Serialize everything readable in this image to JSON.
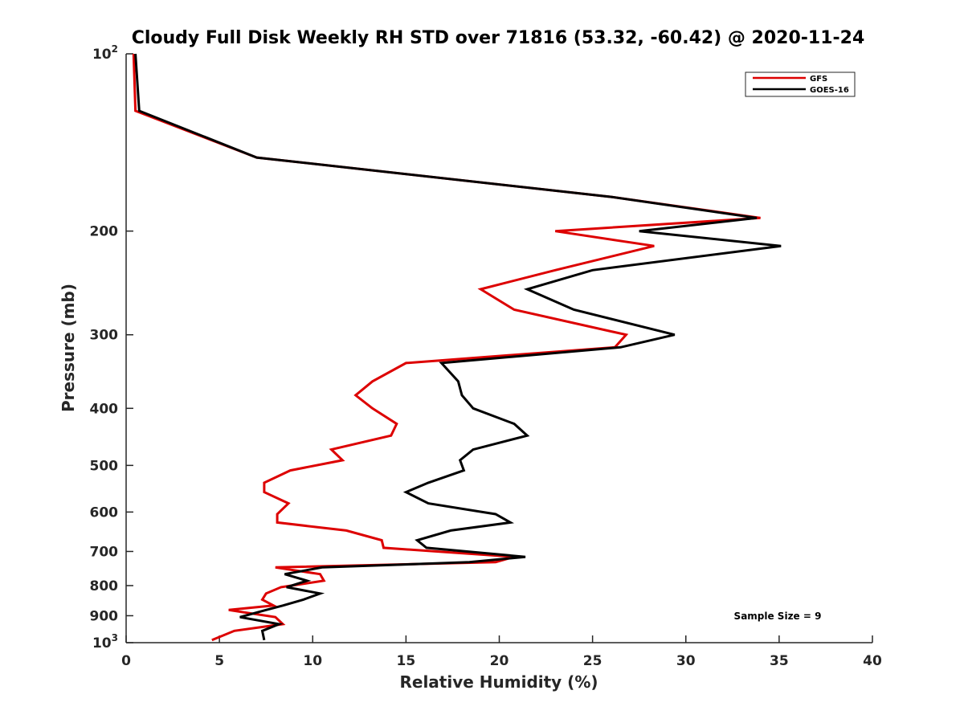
{
  "chart_data": {
    "type": "line",
    "title": "Cloudy Full Disk Weekly RH STD over 71816 (53.32, -60.42) @ 2020-11-24",
    "xlabel": "Relative Humidity (%)",
    "ylabel": "Pressure (mb)",
    "xlim": [
      0,
      40
    ],
    "ylim": [
      100,
      1000
    ],
    "y_scale": "log",
    "y_reversed": true,
    "x_ticks": [
      "0",
      "5",
      "10",
      "15",
      "20",
      "25",
      "30",
      "35",
      "40"
    ],
    "y_ticks": [
      {
        "value": 100,
        "base": "10",
        "exp": "2"
      },
      {
        "value": 200,
        "label": "200"
      },
      {
        "value": 300,
        "label": "300"
      },
      {
        "value": 400,
        "label": "400"
      },
      {
        "value": 500,
        "label": "500"
      },
      {
        "value": 600,
        "label": "600"
      },
      {
        "value": 700,
        "label": "700"
      },
      {
        "value": 800,
        "label": "800"
      },
      {
        "value": 900,
        "label": "900"
      },
      {
        "value": 1000,
        "base": "10",
        "exp": "3"
      }
    ],
    "legend_position": "top-right",
    "annotation": "Sample Size = 9",
    "series": [
      {
        "name": "GFS",
        "color": "#dd0000",
        "points": [
          [
            0.4,
            100
          ],
          [
            0.5,
            125
          ],
          [
            7.0,
            150
          ],
          [
            26.0,
            175
          ],
          [
            34.0,
            190
          ],
          [
            23.0,
            200
          ],
          [
            28.3,
            212
          ],
          [
            23.0,
            233
          ],
          [
            19.0,
            251
          ],
          [
            20.8,
            272
          ],
          [
            26.8,
            300
          ],
          [
            26.2,
            315
          ],
          [
            15.0,
            335
          ],
          [
            13.2,
            360
          ],
          [
            12.3,
            380
          ],
          [
            13.2,
            400
          ],
          [
            14.5,
            425
          ],
          [
            14.2,
            445
          ],
          [
            11.0,
            470
          ],
          [
            11.6,
            490
          ],
          [
            8.8,
            510
          ],
          [
            7.4,
            535
          ],
          [
            7.4,
            555
          ],
          [
            8.7,
            580
          ],
          [
            8.1,
            605
          ],
          [
            8.1,
            625
          ],
          [
            11.8,
            645
          ],
          [
            13.7,
            670
          ],
          [
            13.8,
            690
          ],
          [
            20.8,
            715
          ],
          [
            19.8,
            730
          ],
          [
            8.0,
            745
          ],
          [
            10.4,
            765
          ],
          [
            10.6,
            785
          ],
          [
            8.3,
            805
          ],
          [
            7.5,
            825
          ],
          [
            7.3,
            845
          ],
          [
            7.9,
            865
          ],
          [
            5.5,
            880
          ],
          [
            8.0,
            905
          ],
          [
            8.4,
            930
          ],
          [
            5.8,
            955
          ],
          [
            4.6,
            990
          ]
        ]
      },
      {
        "name": "GOES-16",
        "color": "#000000",
        "points": [
          [
            0.5,
            100
          ],
          [
            0.7,
            125
          ],
          [
            7.0,
            150
          ],
          [
            26.0,
            175
          ],
          [
            33.8,
            190
          ],
          [
            27.5,
            200
          ],
          [
            35.1,
            212
          ],
          [
            25.0,
            233
          ],
          [
            21.5,
            251
          ],
          [
            24.0,
            272
          ],
          [
            29.4,
            300
          ],
          [
            26.5,
            315
          ],
          [
            16.9,
            335
          ],
          [
            17.8,
            360
          ],
          [
            18.0,
            380
          ],
          [
            18.6,
            400
          ],
          [
            20.8,
            425
          ],
          [
            21.5,
            445
          ],
          [
            18.6,
            470
          ],
          [
            17.9,
            490
          ],
          [
            18.1,
            510
          ],
          [
            16.2,
            535
          ],
          [
            15.0,
            555
          ],
          [
            16.2,
            580
          ],
          [
            19.8,
            605
          ],
          [
            20.6,
            625
          ],
          [
            17.4,
            645
          ],
          [
            15.6,
            670
          ],
          [
            16.1,
            690
          ],
          [
            21.4,
            715
          ],
          [
            18.4,
            730
          ],
          [
            10.5,
            745
          ],
          [
            8.5,
            765
          ],
          [
            9.7,
            785
          ],
          [
            8.6,
            805
          ],
          [
            10.4,
            825
          ],
          [
            9.5,
            845
          ],
          [
            8.4,
            865
          ],
          [
            7.5,
            880
          ],
          [
            6.1,
            905
          ],
          [
            8.2,
            930
          ],
          [
            7.3,
            955
          ],
          [
            7.4,
            990
          ]
        ]
      }
    ]
  }
}
